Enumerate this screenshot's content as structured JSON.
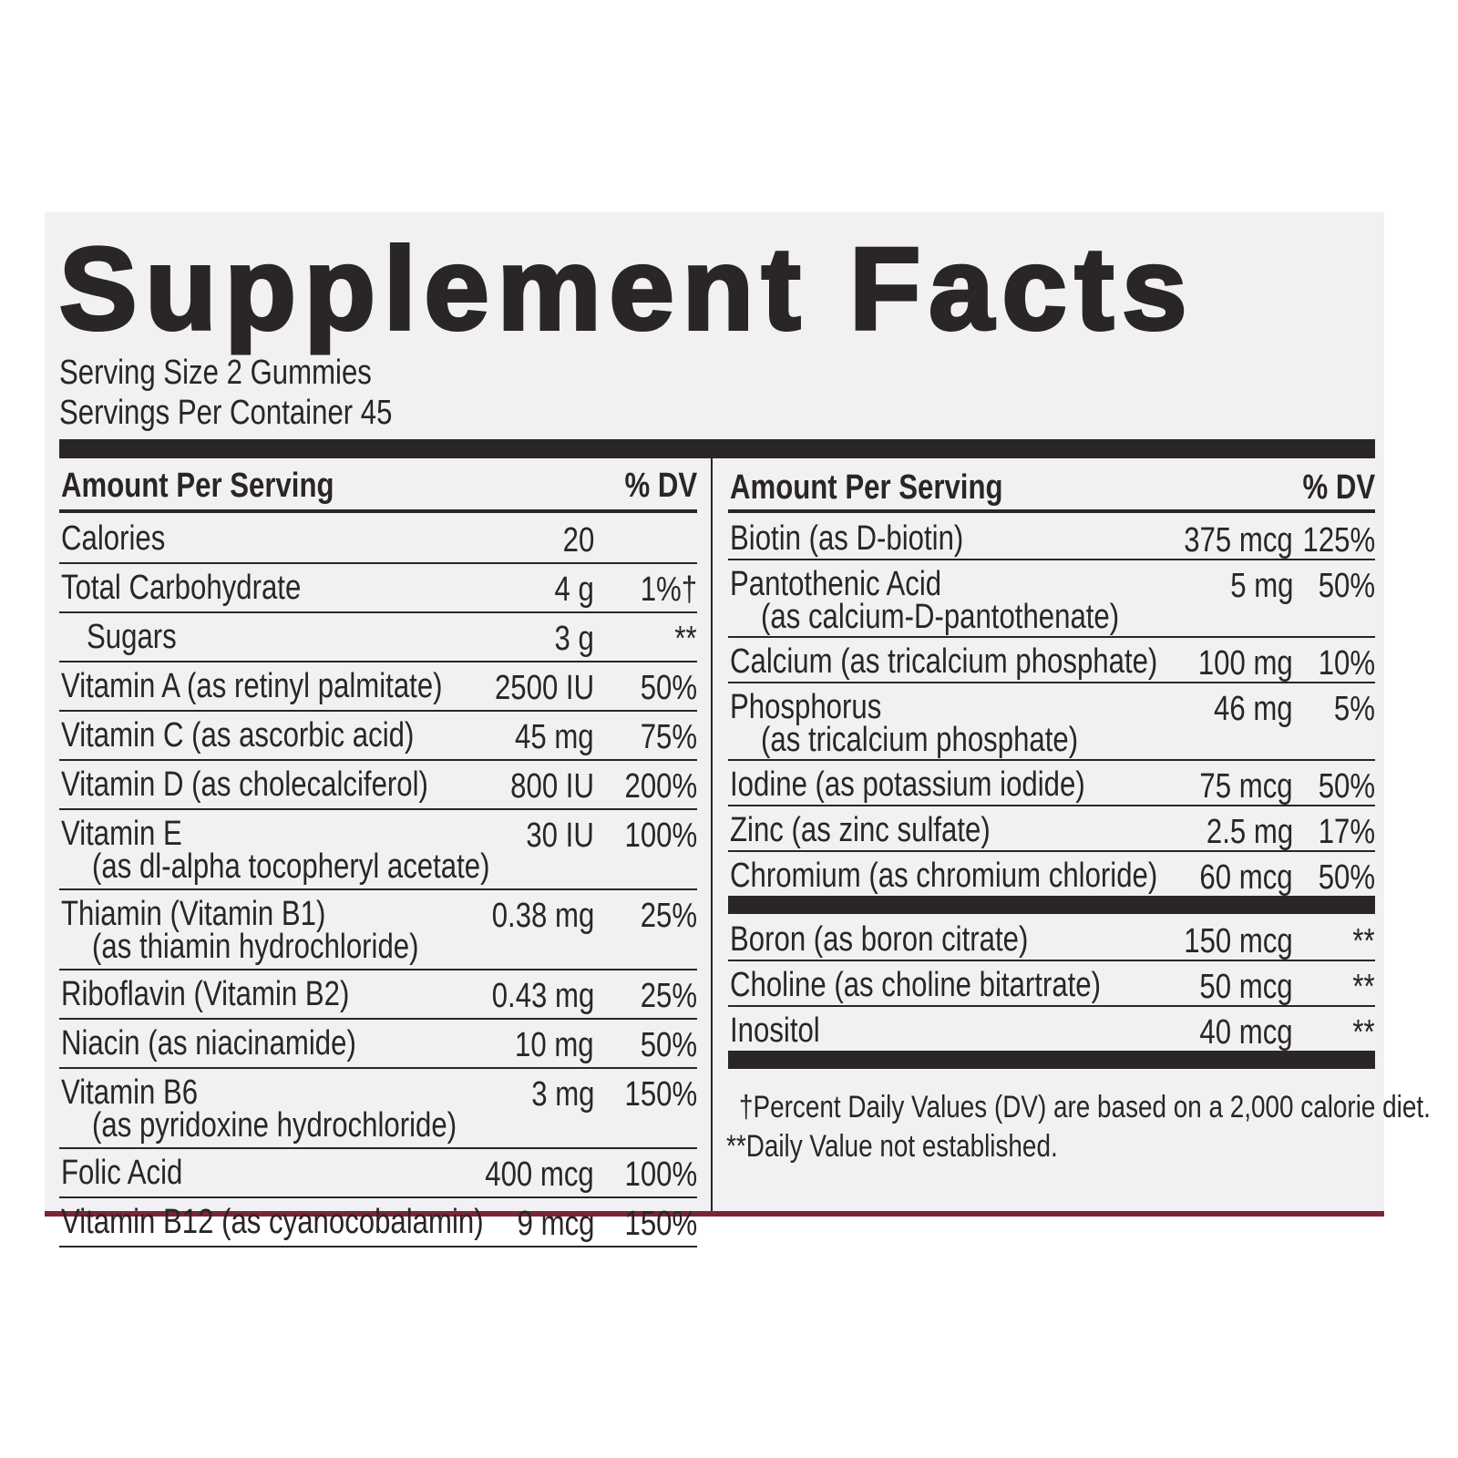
{
  "title": "Supplement Facts",
  "serving_size": "Serving Size 2 Gummies",
  "servings_per_container": "Servings Per Container 45",
  "left_header": {
    "amount": "Amount Per Serving",
    "dv": "% DV"
  },
  "right_header": {
    "amount": "Amount Per Serving",
    "dv": "% DV"
  },
  "left_rows": [
    {
      "name": "Calories",
      "amount": "20"
    },
    {
      "name": "Total Carbohydrate",
      "amount": "4 g",
      "dv": "1%†"
    },
    {
      "name": "Sugars",
      "amount": "3 g",
      "dv": "**"
    },
    {
      "name": "Vitamin A (as retinyl palmitate)",
      "amount": "2500 IU",
      "dv": "50%"
    },
    {
      "name": "Vitamin C (as ascorbic acid)",
      "amount": "45 mg",
      "dv": "75%"
    },
    {
      "name": "Vitamin D (as cholecalciferol)",
      "amount": "800 IU",
      "dv": "200%"
    },
    {
      "name": "Vitamin E",
      "sub": "(as dl-alpha tocopheryl acetate)",
      "amount": "30 IU",
      "dv": "100%"
    },
    {
      "name": "Thiamin (Vitamin B1)",
      "sub": "(as thiamin hydrochloride)",
      "amount": "0.38 mg",
      "dv": "25%"
    },
    {
      "name": "Riboflavin (Vitamin B2)",
      "amount": "0.43 mg",
      "dv": "25%"
    },
    {
      "name": "Niacin (as niacinamide)",
      "amount": "10 mg",
      "dv": "50%"
    },
    {
      "name": "Vitamin B6",
      "sub": "(as pyridoxine hydrochloride)",
      "amount": "3 mg",
      "dv": "150%"
    },
    {
      "name": "Folic Acid",
      "amount": "400 mcg",
      "dv": "100%"
    },
    {
      "name": "Vitamin B12 (as cyanocobalamin)",
      "amount": "9 mcg",
      "dv": "150%"
    }
  ],
  "right_rows": [
    {
      "name": "Biotin (as D-biotin)",
      "amount": "375 mcg",
      "dv": "125%"
    },
    {
      "name": "Pantothenic Acid",
      "sub": "(as calcium-D-pantothenate)",
      "amount": "5 mg",
      "dv": "50%"
    },
    {
      "name": "Calcium (as tricalcium phosphate)",
      "amount": "100 mg",
      "dv": "10%"
    },
    {
      "name": "Phosphorus",
      "sub": "(as tricalcium phosphate)",
      "amount": "46 mg",
      "dv": "5%"
    },
    {
      "name": "Iodine (as potassium iodide)",
      "amount": "75 mcg",
      "dv": "50%"
    },
    {
      "name": "Zinc (as zinc sulfate)",
      "amount": "2.5 mg",
      "dv": "17%"
    },
    {
      "name": "Chromium (as chromium chloride)",
      "amount": "60 mcg",
      "dv": "50%"
    }
  ],
  "right_rows_2": [
    {
      "name": "Boron (as boron citrate)",
      "amount": "150 mcg",
      "dv": "**"
    },
    {
      "name": "Choline (as choline bitartrate)",
      "amount": "50 mcg",
      "dv": "**"
    },
    {
      "name": "Inositol",
      "amount": "40 mcg",
      "dv": "**"
    }
  ],
  "footnotes": [
    "†Percent Daily Values (DV) are based on a 2,000 calorie diet.",
    "**Daily Value not established."
  ]
}
